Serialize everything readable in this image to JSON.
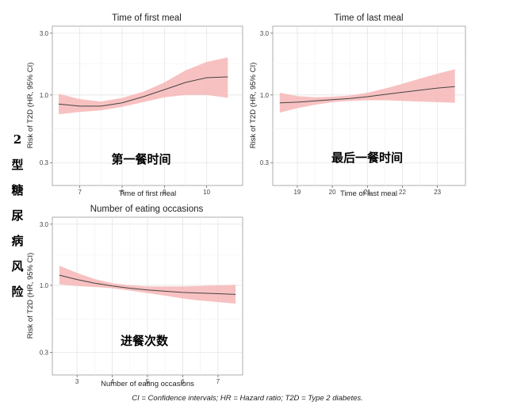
{
  "side_label_chars": [
    "2",
    "型",
    "糖",
    "尿",
    "病",
    "风",
    "险"
  ],
  "caption": "CI = Confidence intervals; HR = Hazard ratio; T2D = Type 2 diabetes.",
  "chart_data": [
    {
      "type": "line",
      "title": "Time of first meal",
      "xlabel": "Time of first meal",
      "ylabel": "Risk of T2D (HR, 95% CI)",
      "overlay_label": "第一餐时间",
      "y_scale": "log",
      "xlim": [
        6.35,
        10.85
      ],
      "ylim": [
        0.2,
        3.4
      ],
      "xticks": [
        7,
        8,
        9,
        10
      ],
      "yticks": [
        0.3,
        1.0,
        3.0
      ],
      "ytick_labels": [
        "0.3",
        "1.0",
        "3.0"
      ],
      "series": [
        {
          "x": [
            6.5,
            7.0,
            7.5,
            8.0,
            8.5,
            9.0,
            9.5,
            10.0,
            10.5
          ],
          "hr": [
            0.85,
            0.82,
            0.82,
            0.87,
            0.97,
            1.1,
            1.25,
            1.36,
            1.38
          ],
          "lower": [
            0.71,
            0.74,
            0.76,
            0.81,
            0.88,
            0.96,
            1.0,
            1.0,
            0.95
          ],
          "upper": [
            1.02,
            0.93,
            0.89,
            0.95,
            1.06,
            1.25,
            1.55,
            1.8,
            1.95
          ]
        }
      ]
    },
    {
      "type": "line",
      "title": "Time of last meal",
      "xlabel": "Time of last meal",
      "ylabel": "Risk of T2D (HR, 95% CI)",
      "overlay_label": "最后一餐时间",
      "y_scale": "log",
      "xlim": [
        18.3,
        23.8
      ],
      "ylim": [
        0.2,
        3.4
      ],
      "xticks": [
        19,
        20,
        21,
        22,
        23
      ],
      "yticks": [
        0.3,
        1.0,
        3.0
      ],
      "ytick_labels": [
        "0.3",
        "1.0",
        "3.0"
      ],
      "series": [
        {
          "x": [
            18.5,
            19.0,
            19.5,
            20.0,
            20.5,
            21.0,
            21.5,
            22.0,
            22.5,
            23.0,
            23.5
          ],
          "hr": [
            0.87,
            0.88,
            0.9,
            0.92,
            0.94,
            0.97,
            1.01,
            1.05,
            1.09,
            1.13,
            1.16
          ],
          "lower": [
            0.73,
            0.79,
            0.84,
            0.88,
            0.9,
            0.91,
            0.91,
            0.9,
            0.89,
            0.88,
            0.87
          ],
          "upper": [
            1.04,
            0.98,
            0.96,
            0.97,
            0.99,
            1.04,
            1.12,
            1.22,
            1.34,
            1.46,
            1.58
          ]
        }
      ]
    },
    {
      "type": "line",
      "title": "Number of eating occasions",
      "xlabel": "Number of eating occasions",
      "ylabel": "Risk of T2D (HR, 95% CI)",
      "overlay_label": "进餐次数",
      "y_scale": "log",
      "xlim": [
        2.3,
        7.7
      ],
      "ylim": [
        0.2,
        3.4
      ],
      "xticks": [
        3,
        4,
        5,
        6,
        7
      ],
      "yticks": [
        0.3,
        1.0,
        3.0
      ],
      "ytick_labels": [
        "0.3",
        "1.0",
        "3.0"
      ],
      "series": [
        {
          "x": [
            2.5,
            3.0,
            3.5,
            4.0,
            4.5,
            5.0,
            5.5,
            6.0,
            6.5,
            7.0,
            7.5
          ],
          "hr": [
            1.2,
            1.11,
            1.04,
            0.99,
            0.95,
            0.92,
            0.9,
            0.88,
            0.87,
            0.86,
            0.85
          ],
          "lower": [
            1.02,
            0.99,
            0.97,
            0.95,
            0.91,
            0.87,
            0.83,
            0.79,
            0.76,
            0.74,
            0.72
          ],
          "upper": [
            1.42,
            1.25,
            1.12,
            1.04,
            1.0,
            0.98,
            0.98,
            0.98,
            0.99,
            1.0,
            1.01
          ]
        }
      ]
    }
  ]
}
